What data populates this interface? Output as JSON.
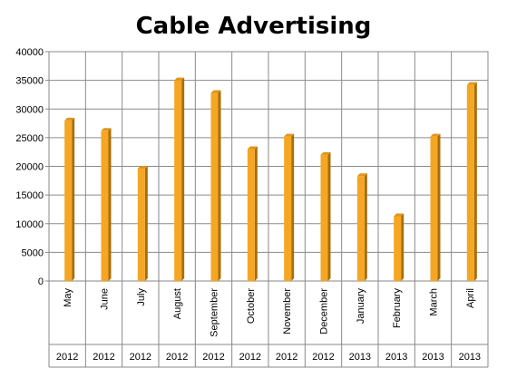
{
  "chart_data": {
    "type": "bar",
    "title": "Cable Advertising",
    "categories": [
      "May",
      "June",
      "July",
      "August",
      "September",
      "October",
      "November",
      "December",
      "January",
      "February",
      "March",
      "April"
    ],
    "years": [
      "2012",
      "2012",
      "2012",
      "2012",
      "2012",
      "2012",
      "2012",
      "2012",
      "2013",
      "2013",
      "2013",
      "2013"
    ],
    "values": [
      28000,
      26200,
      19600,
      35000,
      32800,
      23000,
      25200,
      22000,
      18300,
      11300,
      25200,
      34200
    ],
    "ylim": [
      0,
      40000
    ],
    "yticks": [
      0,
      5000,
      10000,
      15000,
      20000,
      25000,
      30000,
      35000,
      40000
    ],
    "grid": true,
    "legend": "none",
    "bar_color": "#f5a623",
    "bar_side_color": "#a86e0c"
  }
}
